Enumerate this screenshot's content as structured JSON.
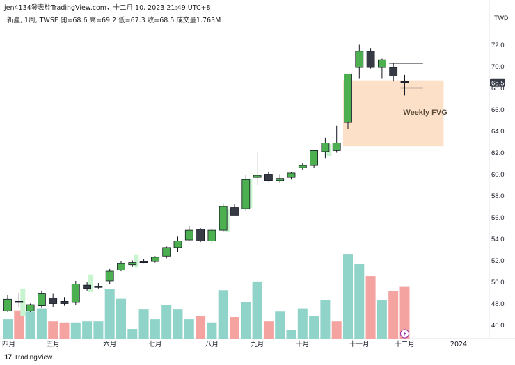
{
  "header": {
    "publish_line": "jen4134發表於TradingView.com，十二月 10, 2023 21:49 UTC+8",
    "symbol_line": "新產, 1周, TWSE  開=68.6  高=69.2  低=67.3  收=68.5  成交量1.763M"
  },
  "currency": "TWD",
  "footer": {
    "logo_mark": "17",
    "logo_text": "TradingView"
  },
  "colors": {
    "up": "#4caf50",
    "down": "#363a45",
    "vol_up": "#8fd3c9",
    "vol_down": "#f4a3a0",
    "fvg": "#fce0c8",
    "fvg_light": "#c8f5d0",
    "last_price": "#363a45"
  },
  "chart_data": {
    "type": "candlestick",
    "title": "",
    "ylim": [
      45,
      74
    ],
    "y_ticks": [
      46,
      48,
      50,
      52,
      54,
      56,
      58,
      60,
      62,
      64,
      66,
      68,
      70,
      72
    ],
    "x_tick_labels": [
      {
        "label": "四月",
        "index": 0
      },
      {
        "label": "五月",
        "index": 4
      },
      {
        "label": "六月",
        "index": 9
      },
      {
        "label": "七月",
        "index": 13
      },
      {
        "label": "八月",
        "index": 18
      },
      {
        "label": "九月",
        "index": 22
      },
      {
        "label": "十月",
        "index": 26
      },
      {
        "label": "十一月",
        "index": 31
      },
      {
        "label": "十二月",
        "index": 35
      },
      {
        "label": "2024",
        "index": 39
      }
    ],
    "candles": [
      {
        "o": 47.3,
        "h": 48.8,
        "l": 47.2,
        "c": 48.4,
        "v": 1.8
      },
      {
        "o": 48.2,
        "h": 49.0,
        "l": 47.7,
        "c": 48.1,
        "v": 2.6
      },
      {
        "o": 47.3,
        "h": 48.0,
        "l": 47.2,
        "c": 47.9,
        "v": 2.5
      },
      {
        "o": 47.8,
        "h": 49.2,
        "l": 47.6,
        "c": 48.9,
        "v": 2.8
      },
      {
        "o": 48.5,
        "h": 48.9,
        "l": 47.7,
        "c": 48.0,
        "v": 1.6
      },
      {
        "o": 48.2,
        "h": 48.6,
        "l": 47.8,
        "c": 48.0,
        "v": 1.5
      },
      {
        "o": 48.1,
        "h": 50.1,
        "l": 47.9,
        "c": 49.8,
        "v": 1.5
      },
      {
        "o": 49.7,
        "h": 50.0,
        "l": 49.2,
        "c": 49.4,
        "v": 1.6
      },
      {
        "o": 49.6,
        "h": 49.9,
        "l": 49.4,
        "c": 49.5,
        "v": 1.6
      },
      {
        "o": 50.1,
        "h": 51.2,
        "l": 49.8,
        "c": 51.0,
        "v": 4.6
      },
      {
        "o": 51.1,
        "h": 51.9,
        "l": 51.0,
        "c": 51.7,
        "v": 3.7
      },
      {
        "o": 51.6,
        "h": 52.0,
        "l": 51.4,
        "c": 51.8,
        "v": 0.9
      },
      {
        "o": 51.9,
        "h": 52.1,
        "l": 51.7,
        "c": 51.8,
        "v": 2.7
      },
      {
        "o": 51.9,
        "h": 52.4,
        "l": 51.8,
        "c": 52.3,
        "v": 1.8
      },
      {
        "o": 52.4,
        "h": 53.3,
        "l": 52.2,
        "c": 53.2,
        "v": 3.1
      },
      {
        "o": 53.2,
        "h": 54.2,
        "l": 52.8,
        "c": 53.8,
        "v": 2.7
      },
      {
        "o": 53.9,
        "h": 55.2,
        "l": 53.8,
        "c": 54.8,
        "v": 1.8
      },
      {
        "o": 54.9,
        "h": 55.0,
        "l": 53.7,
        "c": 53.8,
        "v": 2.1
      },
      {
        "o": 53.8,
        "h": 55.0,
        "l": 53.5,
        "c": 54.8,
        "v": 1.5
      },
      {
        "o": 54.8,
        "h": 57.3,
        "l": 54.6,
        "c": 57.0,
        "v": 4.5
      },
      {
        "o": 56.9,
        "h": 57.2,
        "l": 56.2,
        "c": 56.2,
        "v": 2.0
      },
      {
        "o": 56.8,
        "h": 59.9,
        "l": 56.6,
        "c": 59.5,
        "v": 3.4
      },
      {
        "o": 59.7,
        "h": 62.1,
        "l": 59.0,
        "c": 59.9,
        "v": 5.3
      },
      {
        "o": 60.0,
        "h": 60.2,
        "l": 59.3,
        "c": 59.4,
        "v": 1.6
      },
      {
        "o": 59.4,
        "h": 60.0,
        "l": 59.2,
        "c": 59.6,
        "v": 2.5
      },
      {
        "o": 59.7,
        "h": 60.2,
        "l": 59.5,
        "c": 60.1,
        "v": 0.8
      },
      {
        "o": 60.6,
        "h": 61.0,
        "l": 60.4,
        "c": 60.8,
        "v": 2.8
      },
      {
        "o": 60.8,
        "h": 62.2,
        "l": 60.6,
        "c": 62.2,
        "v": 2.1
      },
      {
        "o": 62.1,
        "h": 63.4,
        "l": 61.5,
        "c": 62.9,
        "v": 3.6
      },
      {
        "o": 62.2,
        "h": 64.5,
        "l": 62.0,
        "c": 62.9,
        "v": 1.6
      },
      {
        "o": 64.8,
        "h": 69.3,
        "l": 64.2,
        "c": 69.3,
        "v": 7.8
      },
      {
        "o": 69.9,
        "h": 72.0,
        "l": 68.9,
        "c": 71.4,
        "v": 6.9
      },
      {
        "o": 71.4,
        "h": 71.7,
        "l": 69.8,
        "c": 69.9,
        "v": 5.8
      },
      {
        "o": 69.9,
        "h": 70.7,
        "l": 68.9,
        "c": 70.6,
        "v": 3.6
      },
      {
        "o": 69.9,
        "h": 70.3,
        "l": 68.6,
        "c": 69.1,
        "v": 4.4
      },
      {
        "o": 68.6,
        "h": 69.2,
        "l": 67.3,
        "c": 68.5,
        "v": 4.8
      }
    ],
    "volume_up_down": [
      "up",
      "down",
      "up",
      "up",
      "down",
      "down",
      "up",
      "up",
      "up",
      "up",
      "up",
      "up",
      "up",
      "up",
      "up",
      "up",
      "up",
      "down",
      "up",
      "up",
      "down",
      "up",
      "up",
      "down",
      "up",
      "up",
      "up",
      "up",
      "up",
      "down",
      "up",
      "up",
      "down",
      "up",
      "down",
      "down"
    ],
    "last_price": 68.5,
    "annotations": [
      {
        "type": "box",
        "label": "Weekly FVG",
        "x_from": 30,
        "x_to": 38,
        "y_low": 62.6,
        "y_high": 68.7
      }
    ],
    "horizontal_rays": [
      {
        "from_index": 34,
        "to_index": 36,
        "y": 70.3
      },
      {
        "from_index": 35,
        "to_index": 36,
        "y": 68.0
      }
    ]
  }
}
